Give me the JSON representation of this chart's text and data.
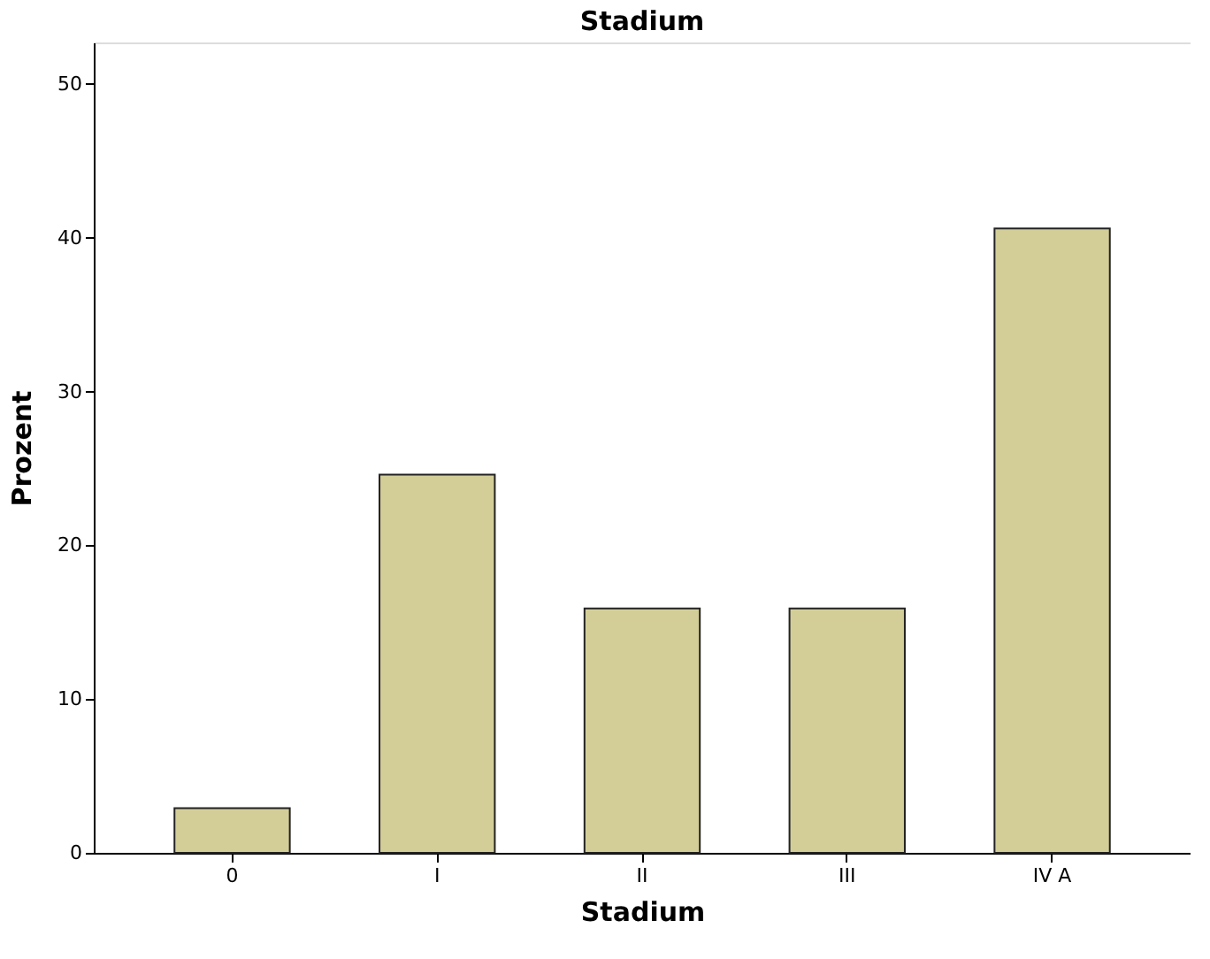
{
  "chart_data": {
    "type": "bar",
    "title": "Stadium",
    "xlabel": "Stadium",
    "ylabel": "Prozent",
    "categories": [
      "0",
      "I",
      "II",
      "III",
      "IV A"
    ],
    "values": [
      2.9,
      24.6,
      15.9,
      15.9,
      40.6
    ],
    "color": "#d3cd98",
    "ylim": [
      0,
      52.7
    ],
    "yticks": [
      0,
      10,
      20,
      30,
      40,
      50
    ],
    "grid": false
  }
}
